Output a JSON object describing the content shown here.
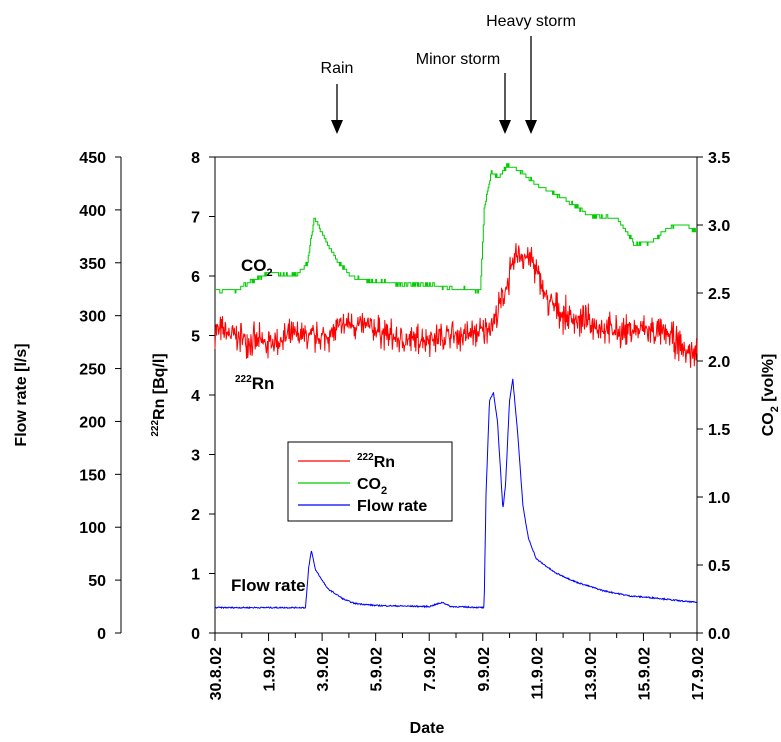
{
  "chart_data": {
    "type": "line",
    "xlabel": "Date",
    "x_ticks": [
      "30.8.02",
      "1.9.02",
      "3.9.02",
      "5.9.02",
      "7.9.02",
      "9.9.02",
      "11.9.02",
      "13.9.02",
      "15.9.02",
      "17.9.02"
    ],
    "x_range": [
      "30.8.02",
      "17.9.02"
    ],
    "y_axes": {
      "flow": {
        "label": "Flow rate [l/s]",
        "range": [
          0,
          450
        ],
        "ticks": [
          "0",
          "50",
          "100",
          "150",
          "200",
          "250",
          "300",
          "350",
          "400",
          "450"
        ]
      },
      "rn": {
        "label_sup": "222",
        "label_main": "Rn [Bq/l]",
        "range": [
          0,
          8
        ],
        "ticks": [
          "0",
          "1",
          "2",
          "3",
          "4",
          "5",
          "6",
          "7",
          "8"
        ]
      },
      "co2": {
        "label_main": "CO",
        "label_sub": "2",
        "label_rest": " [vol%]",
        "range": [
          0.0,
          3.5
        ],
        "ticks": [
          "0.0",
          "0.5",
          "1.0",
          "1.5",
          "2.0",
          "2.5",
          "3.0",
          "3.5"
        ]
      }
    },
    "annotations": [
      {
        "text": "Rain",
        "date": "3.6"
      },
      {
        "text": "Minor storm",
        "date": "10.3"
      },
      {
        "text": "Heavy storm",
        "date": "10.9"
      }
    ],
    "series_labels": {
      "co2": {
        "main": "CO",
        "sub": "2"
      },
      "rn": {
        "sup": "222",
        "main": "Rn"
      },
      "flow": {
        "main": "Flow rate"
      }
    },
    "legend": [
      {
        "sup": "222",
        "main": "Rn",
        "color": "#ff0000"
      },
      {
        "main": "CO",
        "sub": "2",
        "color": "#00cc00"
      },
      {
        "main": "Flow rate",
        "color": "#0000ff"
      }
    ],
    "series": [
      {
        "name": "Rn",
        "unit": "Bq/l",
        "color": "#ff0000",
        "noise": 0.32,
        "points": [
          [
            0,
            5.1
          ],
          [
            1,
            4.95
          ],
          [
            2,
            4.85
          ],
          [
            3,
            5.0
          ],
          [
            4,
            4.95
          ],
          [
            5,
            5.2
          ],
          [
            6,
            5.1
          ],
          [
            7,
            4.9
          ],
          [
            8,
            4.95
          ],
          [
            9,
            5.0
          ],
          [
            10,
            5.05
          ],
          [
            10.5,
            5.3
          ],
          [
            11.3,
            6.4
          ],
          [
            11.8,
            6.3
          ],
          [
            12.4,
            5.6
          ],
          [
            13,
            5.35
          ],
          [
            14,
            5.2
          ],
          [
            15,
            5.05
          ],
          [
            16,
            5.1
          ],
          [
            17,
            5.0
          ],
          [
            17.5,
            4.75
          ],
          [
            18,
            4.7
          ]
        ]
      },
      {
        "name": "CO2",
        "unit": "vol%",
        "color": "#00cc00",
        "noise": 0.025,
        "points": [
          [
            0,
            2.52
          ],
          [
            0.8,
            2.52
          ],
          [
            1.2,
            2.57
          ],
          [
            2,
            2.65
          ],
          [
            2.6,
            2.63
          ],
          [
            3.0,
            2.63
          ],
          [
            3.45,
            2.72
          ],
          [
            3.7,
            3.06
          ],
          [
            4.1,
            2.9
          ],
          [
            4.6,
            2.72
          ],
          [
            5.1,
            2.62
          ],
          [
            6,
            2.58
          ],
          [
            7,
            2.57
          ],
          [
            8,
            2.56
          ],
          [
            9,
            2.53
          ],
          [
            9.9,
            2.52
          ],
          [
            10.05,
            3.12
          ],
          [
            10.3,
            3.38
          ],
          [
            10.6,
            3.35
          ],
          [
            10.95,
            3.45
          ],
          [
            11.5,
            3.38
          ],
          [
            12,
            3.3
          ],
          [
            13,
            3.2
          ],
          [
            14,
            3.07
          ],
          [
            15,
            3.05
          ],
          [
            15.7,
            2.85
          ],
          [
            16.3,
            2.88
          ],
          [
            17,
            2.99
          ],
          [
            17.5,
            3.0
          ],
          [
            18,
            2.95
          ]
        ]
      },
      {
        "name": "Flow rate",
        "unit": "l/s",
        "color": "#0000ff",
        "noise": 0.6,
        "points": [
          [
            0,
            25
          ],
          [
            4.5,
            25
          ],
          [
            4.5,
            25
          ],
          [
            9.9,
            25
          ],
          [
            4.6,
            25
          ]
        ]
      }
    ],
    "flow_points": [
      [
        0,
        24
      ],
      [
        3.38,
        24
      ],
      [
        3.5,
        62
      ],
      [
        3.6,
        78
      ],
      [
        3.75,
        60
      ],
      [
        4.2,
        42
      ],
      [
        4.8,
        32
      ],
      [
        5.2,
        28
      ],
      [
        6,
        26
      ],
      [
        8,
        25
      ],
      [
        8.5,
        29
      ],
      [
        8.8,
        25
      ],
      [
        10.05,
        24
      ],
      [
        10.12,
        130
      ],
      [
        10.25,
        220
      ],
      [
        10.4,
        227
      ],
      [
        10.55,
        200
      ],
      [
        10.75,
        117
      ],
      [
        10.85,
        140
      ],
      [
        11.0,
        220
      ],
      [
        11.12,
        240
      ],
      [
        11.3,
        190
      ],
      [
        11.5,
        120
      ],
      [
        11.7,
        90
      ],
      [
        12,
        70
      ],
      [
        12.7,
        57
      ],
      [
        13.5,
        48
      ],
      [
        14.5,
        40
      ],
      [
        15.5,
        35
      ],
      [
        16.5,
        33
      ],
      [
        17.5,
        30
      ],
      [
        18,
        29
      ]
    ],
    "grid": false
  }
}
